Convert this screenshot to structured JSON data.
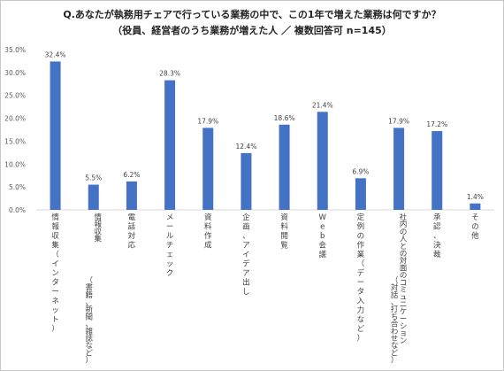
{
  "chart_data": {
    "type": "bar",
    "title": "Q.あなたが執務用チェアで行っている業務の中で、この1年で増えた業務は何ですか？",
    "subtitle": "（役員、経営者のうち業務が増えた人 ／ 複数回答可 n=145）",
    "categories": [
      "情報収集（インターネット）",
      "情報収集（書籍、新聞、雑誌など）",
      "電話対応",
      "メールチェック",
      "資料作成",
      "企画、アイデア出し",
      "資料閲覧",
      "Web会議",
      "定例の作業（データ入力など）",
      "社内の人との対面のコミュニケーション（対話、打ち合わせなど）",
      "承認、決裁",
      "その他"
    ],
    "values": [
      32.4,
      5.5,
      6.2,
      28.3,
      17.9,
      12.4,
      18.6,
      21.4,
      6.9,
      17.9,
      17.2,
      1.4
    ],
    "value_labels": [
      "32.4%",
      "5.5%",
      "6.2%",
      "28.3%",
      "17.9%",
      "12.4%",
      "18.6%",
      "21.4%",
      "6.9%",
      "17.9%",
      "17.2%",
      "1.4%"
    ],
    "y_ticks": [
      "0.0%",
      "5.0%",
      "10.0%",
      "15.0%",
      "20.0%",
      "25.0%",
      "30.0%",
      "35.0%"
    ],
    "ylim": [
      0,
      35
    ],
    "grid": false,
    "legend": "none",
    "bar_color": "#4472c4"
  }
}
